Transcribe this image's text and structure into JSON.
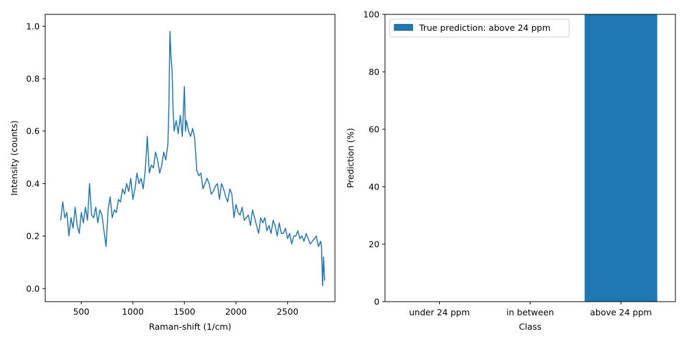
{
  "chart_data": [
    {
      "type": "line",
      "title": "",
      "xlabel": "Raman-shift (1/cm)",
      "ylabel": "Intensity (counts)",
      "xlim": [
        150,
        2960
      ],
      "ylim": [
        -0.05,
        1.045
      ],
      "xticks": [
        "500",
        "1000",
        "1500",
        "2000",
        "2500"
      ],
      "yticks": [
        "0.0",
        "0.2",
        "0.4",
        "0.6",
        "0.8",
        "1.0"
      ],
      "color": "#1f77b4",
      "series": [
        {
          "x": [
            300,
            320,
            340,
            360,
            380,
            400,
            420,
            440,
            460,
            480,
            500,
            520,
            540,
            560,
            580,
            600,
            620,
            640,
            660,
            680,
            700,
            720,
            740,
            760,
            780,
            800,
            820,
            840,
            860,
            880,
            900,
            920,
            940,
            960,
            980,
            1000,
            1020,
            1040,
            1060,
            1080,
            1100,
            1120,
            1140,
            1160,
            1180,
            1200,
            1220,
            1240,
            1260,
            1280,
            1300,
            1320,
            1340,
            1350,
            1360,
            1370,
            1380,
            1390,
            1400,
            1420,
            1440,
            1460,
            1480,
            1500,
            1510,
            1520,
            1540,
            1560,
            1580,
            1600,
            1620,
            1640,
            1660,
            1680,
            1700,
            1720,
            1740,
            1760,
            1780,
            1800,
            1820,
            1840,
            1860,
            1880,
            1900,
            1920,
            1940,
            1960,
            1980,
            2000,
            2020,
            2040,
            2060,
            2080,
            2100,
            2120,
            2140,
            2160,
            2180,
            2200,
            2220,
            2240,
            2260,
            2280,
            2300,
            2320,
            2340,
            2360,
            2380,
            2400,
            2420,
            2440,
            2460,
            2480,
            2500,
            2520,
            2540,
            2560,
            2580,
            2600,
            2620,
            2640,
            2660,
            2680,
            2700,
            2720,
            2740,
            2760,
            2780,
            2800,
            2820,
            2830,
            2840,
            2850,
            2860
          ],
          "y": [
            0.26,
            0.33,
            0.27,
            0.29,
            0.2,
            0.27,
            0.23,
            0.31,
            0.24,
            0.21,
            0.29,
            0.25,
            0.31,
            0.26,
            0.4,
            0.28,
            0.27,
            0.31,
            0.25,
            0.3,
            0.28,
            0.22,
            0.16,
            0.3,
            0.35,
            0.27,
            0.3,
            0.29,
            0.34,
            0.33,
            0.38,
            0.36,
            0.4,
            0.37,
            0.42,
            0.34,
            0.38,
            0.44,
            0.4,
            0.42,
            0.38,
            0.45,
            0.58,
            0.44,
            0.47,
            0.46,
            0.52,
            0.49,
            0.44,
            0.47,
            0.52,
            0.49,
            0.55,
            0.7,
            0.98,
            0.88,
            0.83,
            0.68,
            0.6,
            0.64,
            0.59,
            0.66,
            0.58,
            0.77,
            0.6,
            0.64,
            0.6,
            0.58,
            0.61,
            0.57,
            0.45,
            0.43,
            0.44,
            0.38,
            0.4,
            0.42,
            0.4,
            0.36,
            0.37,
            0.39,
            0.4,
            0.34,
            0.4,
            0.38,
            0.35,
            0.33,
            0.38,
            0.36,
            0.27,
            0.32,
            0.29,
            0.28,
            0.31,
            0.26,
            0.27,
            0.28,
            0.24,
            0.3,
            0.27,
            0.24,
            0.21,
            0.27,
            0.25,
            0.27,
            0.22,
            0.24,
            0.21,
            0.26,
            0.24,
            0.2,
            0.25,
            0.21,
            0.21,
            0.23,
            0.19,
            0.21,
            0.17,
            0.2,
            0.2,
            0.22,
            0.19,
            0.2,
            0.18,
            0.21,
            0.19,
            0.17,
            0.18,
            0.19,
            0.2,
            0.16,
            0.18,
            0.16,
            0.01,
            0.12,
            0.03
          ]
        }
      ]
    },
    {
      "type": "bar",
      "title": "",
      "xlabel": "Class",
      "ylabel": "Prediction (%)",
      "ylim": [
        0,
        100
      ],
      "yticks": [
        "0",
        "20",
        "40",
        "60",
        "80",
        "100"
      ],
      "categories": [
        "under 24 ppm",
        "in between",
        "above 24 ppm"
      ],
      "color": "#1f77b4",
      "legend_position": "top-left",
      "series": [
        {
          "name": "True prediction: above 24 ppm",
          "values": [
            0,
            0,
            100
          ]
        }
      ]
    }
  ]
}
